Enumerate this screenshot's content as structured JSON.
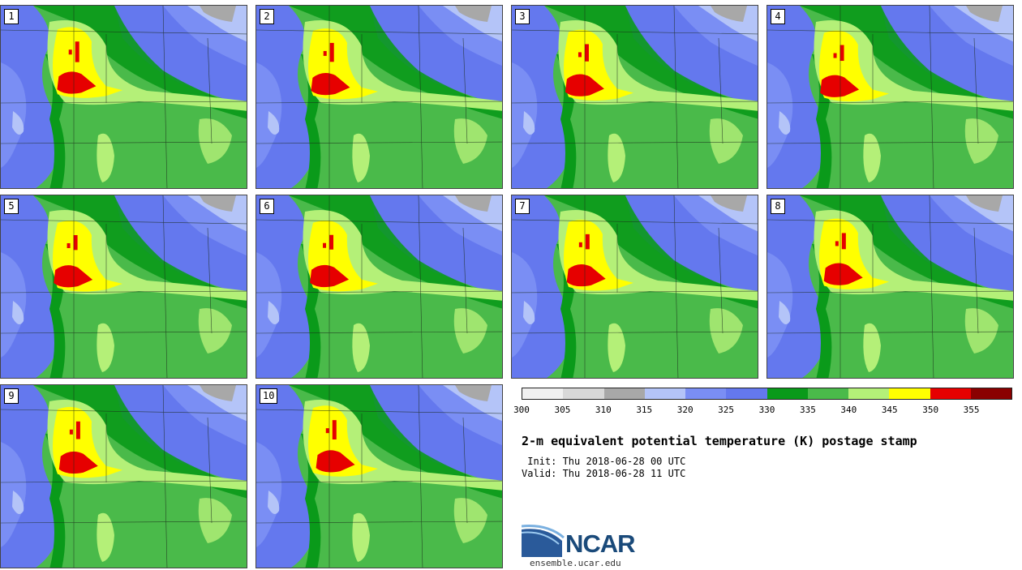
{
  "panels": [
    {
      "label": "1"
    },
    {
      "label": "2"
    },
    {
      "label": "3"
    },
    {
      "label": "4"
    },
    {
      "label": "5"
    },
    {
      "label": "6"
    },
    {
      "label": "7"
    },
    {
      "label": "8"
    },
    {
      "label": "9"
    },
    {
      "label": "10"
    }
  ],
  "colorbar": {
    "colors": [
      "#f0f0f0",
      "#d8d8d8",
      "#a8a8a8",
      "#b4c4f8",
      "#7a8ef4",
      "#6478ee",
      "#0a9a1a",
      "#4aba4a",
      "#b4f078",
      "#ffff00",
      "#e60000",
      "#8a0000"
    ],
    "tick_labels": [
      "300",
      "305",
      "310",
      "315",
      "320",
      "325",
      "330",
      "335",
      "340",
      "345",
      "350",
      "355"
    ]
  },
  "title": "2-m equivalent potential temperature (K) postage stamp",
  "init_text": " Init: Thu 2018-06-28 00 UTC",
  "valid_text": "Valid: Thu 2018-06-28 11 UTC",
  "logo_text": "NCAR",
  "site_url": "ensemble.ucar.edu"
}
